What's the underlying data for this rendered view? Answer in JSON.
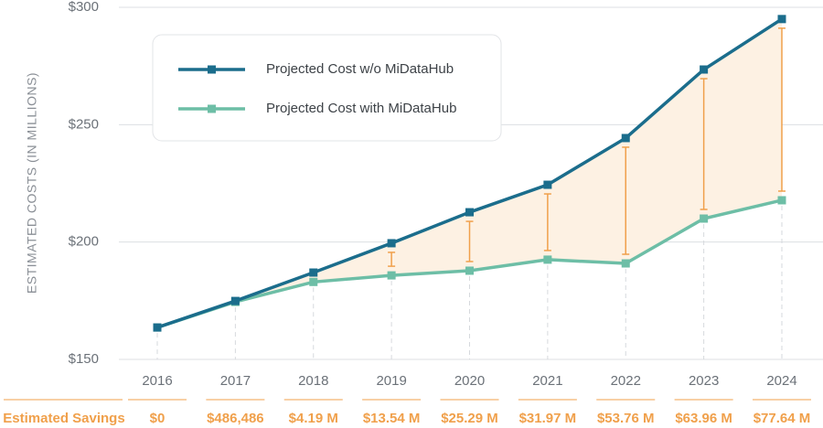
{
  "chart_data": {
    "type": "line",
    "y_label": "ESTIMATED COSTS (IN MILLIONS)",
    "categories": [
      "2016",
      "2017",
      "2018",
      "2019",
      "2020",
      "2021",
      "2022",
      "2023",
      "2024"
    ],
    "series": [
      {
        "name": "Projected Cost w/o MiDataHub",
        "color": "#1b6d8c",
        "values": [
          163.6,
          174.9,
          187,
          199.5,
          212.7,
          224.4,
          244.3,
          273.5,
          295
        ]
      },
      {
        "name": "Projected Cost with MiDataHub",
        "color": "#6dbea6",
        "values": [
          163.6,
          174.5,
          183,
          185.8,
          187.8,
          192.5,
          190.9,
          210,
          217.8
        ]
      }
    ],
    "ylim": [
      150,
      300
    ],
    "yticks": [
      {
        "value": 150,
        "label": "$150"
      },
      {
        "value": 200,
        "label": "$200"
      },
      {
        "value": 250,
        "label": "$250"
      },
      {
        "value": 300,
        "label": "$300"
      }
    ],
    "grid": true,
    "legend": "upper left",
    "band_color": "#fdf1e3",
    "accent_color": "#f0a04b",
    "savings": {
      "title": "Estimated Savings",
      "labels": [
        "$0",
        "$486,486",
        "$4.19 M",
        "$13.54 M",
        "$25.29 M",
        "$31.97 M",
        "$53.76 M",
        "$63.96 M",
        "$77.64 M"
      ]
    }
  }
}
